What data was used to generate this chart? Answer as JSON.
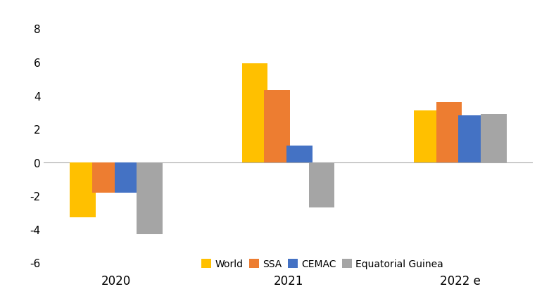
{
  "categories": [
    "2020",
    "2021",
    "2022 e"
  ],
  "series": {
    "World": [
      -3.3,
      5.9,
      3.1
    ],
    "SSA": [
      -1.8,
      4.3,
      3.6
    ],
    "CEMAC": [
      -1.8,
      1.0,
      2.8
    ],
    "Equatorial Guinea": [
      -4.3,
      -2.7,
      2.9
    ]
  },
  "colors": {
    "World": "#FFC000",
    "SSA": "#ED7D31",
    "CEMAC": "#4472C4",
    "Equatorial Guinea": "#A5A5A5"
  },
  "ylim": [
    -6.5,
    9
  ],
  "yticks": [
    -6,
    -4,
    -2,
    0,
    2,
    4,
    6,
    8
  ],
  "legend_order": [
    "World",
    "SSA",
    "CEMAC",
    "Equatorial Guinea"
  ],
  "background_color": "#FFFFFF",
  "bar_width": 0.13,
  "group_positions": [
    0.18,
    0.5,
    0.82
  ]
}
